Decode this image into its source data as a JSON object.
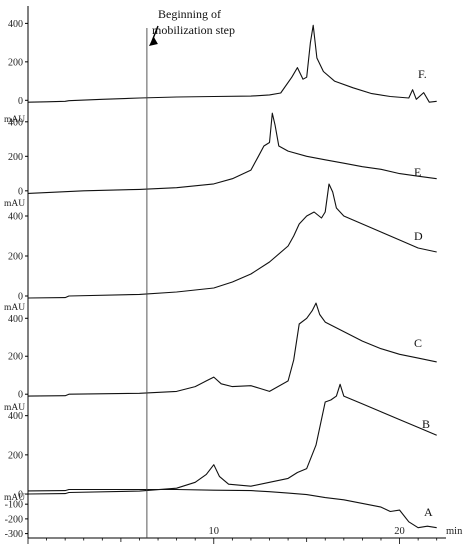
{
  "chart_data": {
    "type": "line",
    "x_unit": "min",
    "x_ticks": [
      10,
      20
    ],
    "xlim": [
      0,
      22.5
    ],
    "annotation": {
      "text_lines": [
        "Beginning of",
        "mobilization step"
      ],
      "x": 6.4
    },
    "panels": [
      {
        "label": "F.",
        "unit": "",
        "yticks": [
          0,
          200,
          400
        ],
        "ylim": [
          -40,
          480
        ],
        "points": [
          [
            0,
            -10
          ],
          [
            1,
            -8
          ],
          [
            2,
            -5
          ],
          [
            2.2,
            -2
          ],
          [
            4,
            5
          ],
          [
            6,
            12
          ],
          [
            8,
            17
          ],
          [
            10,
            20
          ],
          [
            12,
            22
          ],
          [
            13,
            28
          ],
          [
            13.6,
            38
          ],
          [
            14.2,
            120
          ],
          [
            14.5,
            170
          ],
          [
            14.8,
            110
          ],
          [
            15,
            120
          ],
          [
            15.2,
            300
          ],
          [
            15.35,
            390
          ],
          [
            15.55,
            220
          ],
          [
            15.9,
            150
          ],
          [
            16.5,
            100
          ],
          [
            17.5,
            65
          ],
          [
            18.5,
            35
          ],
          [
            19.5,
            20
          ],
          [
            20.5,
            12
          ],
          [
            20.7,
            55
          ],
          [
            20.9,
            5
          ],
          [
            21.3,
            40
          ],
          [
            21.6,
            -10
          ],
          [
            22,
            -5
          ]
        ]
      },
      {
        "label": "E",
        "unit": "mAU",
        "yticks": [
          0,
          200,
          400
        ],
        "ylim": [
          -30,
          480
        ],
        "points": [
          [
            0,
            -15
          ],
          [
            2,
            -5
          ],
          [
            3,
            0
          ],
          [
            6,
            8
          ],
          [
            8,
            18
          ],
          [
            10,
            40
          ],
          [
            11,
            70
          ],
          [
            12,
            120
          ],
          [
            12.4,
            200
          ],
          [
            12.7,
            260
          ],
          [
            13,
            280
          ],
          [
            13.15,
            450
          ],
          [
            13.3,
            380
          ],
          [
            13.5,
            260
          ],
          [
            14,
            230
          ],
          [
            15,
            200
          ],
          [
            16,
            180
          ],
          [
            17,
            160
          ],
          [
            18,
            140
          ],
          [
            19,
            125
          ],
          [
            20,
            100
          ],
          [
            21,
            85
          ],
          [
            22,
            70
          ]
        ]
      },
      {
        "label": "D",
        "unit": "mAU",
        "yticks": [
          0,
          200,
          400
        ],
        "ylim": [
          -20,
          480
        ],
        "points": [
          [
            0,
            -10
          ],
          [
            2,
            -8
          ],
          [
            2.2,
            0
          ],
          [
            6,
            8
          ],
          [
            8,
            20
          ],
          [
            10,
            40
          ],
          [
            11,
            70
          ],
          [
            12,
            110
          ],
          [
            13,
            170
          ],
          [
            14,
            250
          ],
          [
            14.3,
            300
          ],
          [
            14.6,
            360
          ],
          [
            15,
            400
          ],
          [
            15.4,
            420
          ],
          [
            15.8,
            390
          ],
          [
            16,
            420
          ],
          [
            16.2,
            560
          ],
          [
            16.4,
            520
          ],
          [
            16.6,
            440
          ],
          [
            17,
            400
          ],
          [
            18,
            360
          ],
          [
            19,
            320
          ],
          [
            20,
            280
          ],
          [
            21,
            240
          ],
          [
            22,
            220
          ]
        ]
      },
      {
        "label": "C",
        "unit": "mAU",
        "yticks": [
          0,
          200,
          400
        ],
        "ylim": [
          -20,
          470
        ],
        "points": [
          [
            0,
            -10
          ],
          [
            2,
            -8
          ],
          [
            2.2,
            0
          ],
          [
            6,
            5
          ],
          [
            8,
            15
          ],
          [
            9,
            40
          ],
          [
            9.6,
            70
          ],
          [
            10,
            90
          ],
          [
            10.4,
            55
          ],
          [
            11,
            40
          ],
          [
            12,
            45
          ],
          [
            12.5,
            30
          ],
          [
            13,
            15
          ],
          [
            14,
            70
          ],
          [
            14.3,
            180
          ],
          [
            14.6,
            370
          ],
          [
            15,
            400
          ],
          [
            15.3,
            440
          ],
          [
            15.5,
            480
          ],
          [
            15.7,
            420
          ],
          [
            16,
            380
          ],
          [
            17,
            330
          ],
          [
            18,
            280
          ],
          [
            19,
            240
          ],
          [
            20,
            210
          ],
          [
            21,
            190
          ],
          [
            22,
            170
          ]
        ]
      },
      {
        "label": "B",
        "unit": "mAU",
        "yticks": [
          0,
          200,
          400
        ],
        "ylim": [
          -10,
          480
        ],
        "points": [
          [
            0,
            0
          ],
          [
            2,
            2
          ],
          [
            2.2,
            8
          ],
          [
            6,
            15
          ],
          [
            8,
            30
          ],
          [
            9,
            60
          ],
          [
            9.6,
            100
          ],
          [
            10,
            150
          ],
          [
            10.3,
            90
          ],
          [
            10.8,
            50
          ],
          [
            12,
            40
          ],
          [
            13,
            60
          ],
          [
            14,
            80
          ],
          [
            14.5,
            110
          ],
          [
            15,
            130
          ],
          [
            15.5,
            250
          ],
          [
            16,
            470
          ],
          [
            16.3,
            480
          ],
          [
            16.6,
            500
          ],
          [
            16.8,
            560
          ],
          [
            17,
            500
          ],
          [
            18,
            460
          ],
          [
            19,
            420
          ],
          [
            20,
            380
          ],
          [
            21,
            340
          ],
          [
            22,
            300
          ]
        ]
      },
      {
        "label": "A",
        "unit": "mAU",
        "yticks": [
          -100,
          -200,
          -300
        ],
        "ylim": [
          -330,
          10
        ],
        "points": [
          [
            0,
            -10
          ],
          [
            2,
            -8
          ],
          [
            2.2,
            0
          ],
          [
            5,
            0
          ],
          [
            8,
            0
          ],
          [
            10,
            -5
          ],
          [
            12,
            -8
          ],
          [
            13,
            -15
          ],
          [
            14,
            -25
          ],
          [
            15,
            -35
          ],
          [
            16,
            -55
          ],
          [
            17,
            -70
          ],
          [
            18,
            -95
          ],
          [
            19,
            -120
          ],
          [
            19.5,
            -150
          ],
          [
            20,
            -140
          ],
          [
            20.5,
            -220
          ],
          [
            21,
            -260
          ],
          [
            21.5,
            -250
          ],
          [
            22,
            -260
          ]
        ]
      }
    ]
  }
}
